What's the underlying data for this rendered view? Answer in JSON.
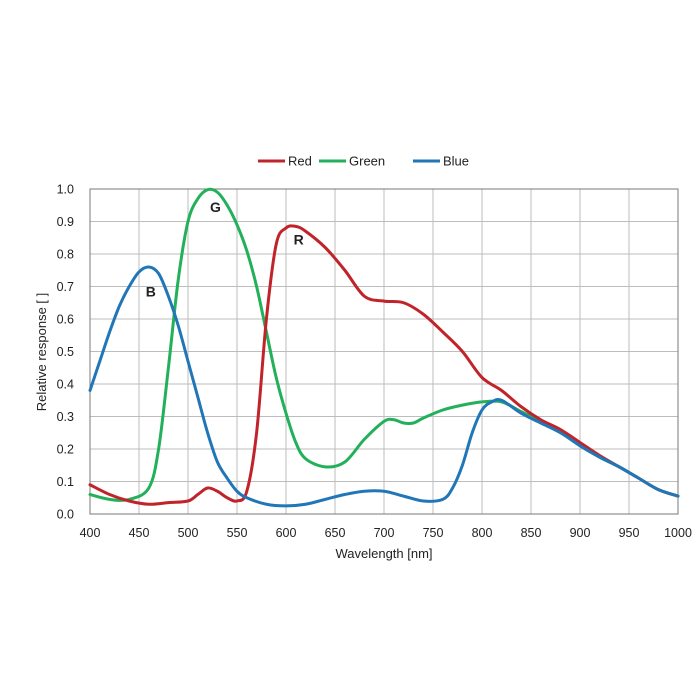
{
  "chart_data": {
    "type": "line",
    "xlabel": "Wavelength [nm]",
    "ylabel": "Relative response [ ]",
    "xlim": [
      400,
      1000
    ],
    "ylim": [
      0,
      1
    ],
    "x_ticks": [
      "400",
      "450",
      "500",
      "550",
      "600",
      "650",
      "700",
      "750",
      "800",
      "850",
      "900",
      "950",
      "1000"
    ],
    "y_ticks": [
      "0.0",
      "0.1",
      "0.2",
      "0.3",
      "0.4",
      "0.5",
      "0.6",
      "0.7",
      "0.8",
      "0.9",
      "1.0"
    ],
    "grid": true,
    "legend_position": "top",
    "series": [
      {
        "name": "Red",
        "color": "#c0242a",
        "x": [
          400,
          420,
          440,
          460,
          480,
          500,
          510,
          520,
          530,
          540,
          550,
          560,
          570,
          580,
          590,
          600,
          610,
          620,
          640,
          660,
          680,
          700,
          720,
          740,
          760,
          780,
          800,
          820,
          840,
          860,
          880,
          900,
          920,
          940,
          960,
          980,
          1000
        ],
        "y": [
          0.09,
          0.06,
          0.04,
          0.03,
          0.035,
          0.04,
          0.06,
          0.08,
          0.07,
          0.05,
          0.04,
          0.07,
          0.25,
          0.6,
          0.83,
          0.88,
          0.885,
          0.87,
          0.82,
          0.75,
          0.67,
          0.655,
          0.65,
          0.615,
          0.56,
          0.5,
          0.42,
          0.38,
          0.33,
          0.29,
          0.26,
          0.22,
          0.18,
          0.145,
          0.11,
          0.075,
          0.055
        ]
      },
      {
        "name": "Green",
        "color": "#22b05a",
        "x": [
          400,
          420,
          440,
          460,
          470,
          480,
          490,
          500,
          510,
          520,
          530,
          540,
          550,
          560,
          570,
          580,
          590,
          600,
          610,
          620,
          640,
          660,
          680,
          700,
          710,
          720,
          730,
          740,
          760,
          780,
          800,
          820,
          840,
          860,
          880,
          900,
          920,
          940,
          960,
          980,
          1000
        ],
        "y": [
          0.06,
          0.045,
          0.045,
          0.08,
          0.2,
          0.45,
          0.72,
          0.9,
          0.97,
          0.998,
          0.99,
          0.95,
          0.89,
          0.81,
          0.7,
          0.56,
          0.42,
          0.31,
          0.22,
          0.17,
          0.145,
          0.16,
          0.23,
          0.285,
          0.29,
          0.28,
          0.28,
          0.295,
          0.32,
          0.335,
          0.345,
          0.345,
          0.315,
          0.285,
          0.255,
          0.21,
          0.175,
          0.145,
          0.11,
          0.075,
          0.055
        ]
      },
      {
        "name": "Blue",
        "color": "#2176b8",
        "x": [
          400,
          410,
          420,
          430,
          440,
          450,
          460,
          470,
          480,
          490,
          500,
          510,
          520,
          530,
          540,
          550,
          560,
          580,
          600,
          620,
          640,
          660,
          680,
          700,
          720,
          740,
          760,
          770,
          780,
          790,
          800,
          810,
          820,
          840,
          860,
          880,
          900,
          920,
          940,
          960,
          980,
          1000
        ],
        "y": [
          0.38,
          0.47,
          0.56,
          0.64,
          0.7,
          0.745,
          0.76,
          0.74,
          0.67,
          0.58,
          0.47,
          0.36,
          0.25,
          0.16,
          0.11,
          0.07,
          0.05,
          0.03,
          0.025,
          0.03,
          0.045,
          0.06,
          0.07,
          0.07,
          0.055,
          0.04,
          0.045,
          0.08,
          0.15,
          0.25,
          0.32,
          0.345,
          0.35,
          0.31,
          0.28,
          0.25,
          0.21,
          0.175,
          0.145,
          0.11,
          0.075,
          0.055
        ]
      }
    ],
    "annotations": [
      {
        "text": "G",
        "x": 528,
        "y": 0.93
      },
      {
        "text": "R",
        "x": 613,
        "y": 0.83
      },
      {
        "text": "B",
        "x": 462,
        "y": 0.67
      }
    ]
  }
}
